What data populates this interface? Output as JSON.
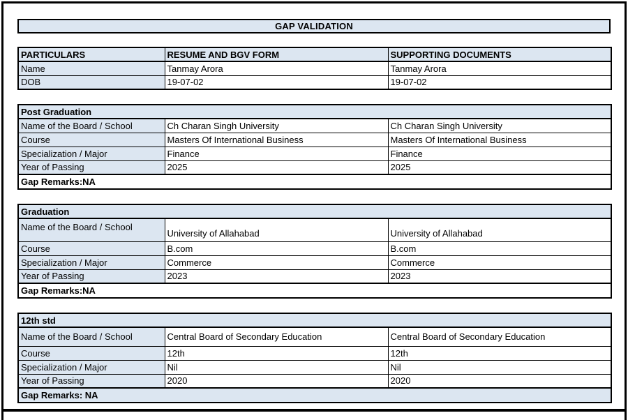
{
  "title": "GAP VALIDATION",
  "colors": {
    "header_bg": "#dce6f1",
    "border": "#000000",
    "page_bg": "#ffffff"
  },
  "top_table": {
    "headers": [
      "PARTICULARS",
      "RESUME AND BGV FORM",
      "SUPPORTING DOCUMENTS"
    ],
    "rows": [
      {
        "label": "Name",
        "resume": "Tanmay Arora",
        "supporting": "Tanmay Arora"
      },
      {
        "label": "DOB",
        "resume": "19-07-02",
        "supporting": "19-07-02"
      }
    ]
  },
  "sections": [
    {
      "heading": "Post Graduation",
      "rows": [
        {
          "label": "Name of the Board / School",
          "resume": "Ch Charan Singh University",
          "supporting": "Ch Charan Singh University"
        },
        {
          "label": "Course",
          "resume": "Masters Of International Business",
          "supporting": "Masters Of International Business"
        },
        {
          "label": "Specialization / Major",
          "resume": "Finance",
          "supporting": "Finance"
        },
        {
          "label": "Year of Passing",
          "resume": "2025",
          "supporting": "2025"
        }
      ],
      "gap_remarks": "Gap Remarks:NA"
    },
    {
      "heading": "Graduation",
      "rows": [
        {
          "label": "Name of the Board / School",
          "resume": "University of Allahabad",
          "supporting": "University of Allahabad"
        },
        {
          "label": "Course",
          "resume": "B.com",
          "supporting": "B.com"
        },
        {
          "label": "Specialization / Major",
          "resume": "Commerce",
          "supporting": "Commerce"
        },
        {
          "label": "Year of Passing",
          "resume": "2023",
          "supporting": "2023"
        }
      ],
      "gap_remarks": "Gap Remarks:NA"
    },
    {
      "heading": "12th std",
      "rows": [
        {
          "label": "Name of the Board / School",
          "resume": "Central Board of Secondary Education",
          "supporting": "Central Board of Secondary Education"
        },
        {
          "label": "Course",
          "resume": "12th",
          "supporting": "12th"
        },
        {
          "label": "Specialization / Major",
          "resume": "Nil",
          "supporting": "Nil"
        },
        {
          "label": "Year of Passing",
          "resume": "2020",
          "supporting": "2020"
        }
      ],
      "gap_remarks": "Gap Remarks: NA"
    }
  ]
}
